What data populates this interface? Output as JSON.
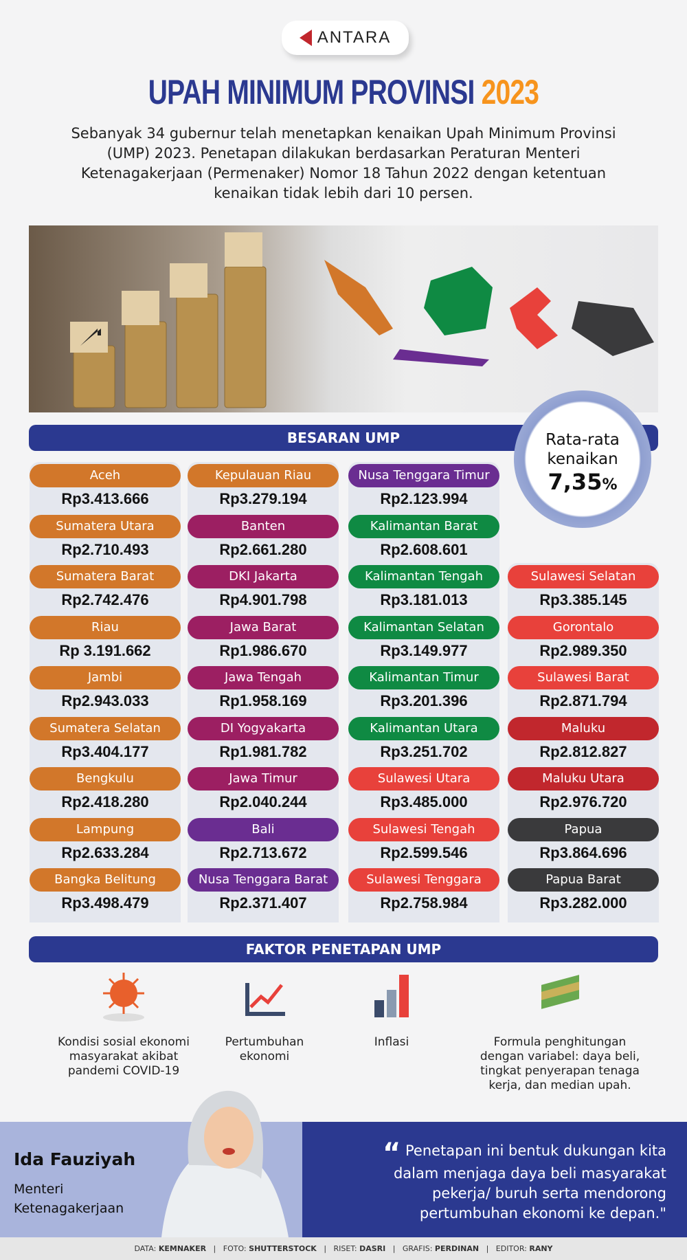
{
  "brand": "ANTARA",
  "title": {
    "main": "UPAH MINIMUM PROVINSI",
    "year": "2023"
  },
  "intro": "Sebanyak 34 gubernur telah menetapkan kenaikan Upah Minimum Provinsi (UMP) 2023. Penetapan dilakukan berdasarkan Peraturan Menteri Ketenagakerjaan (Permenaker) Nomor 18 Tahun 2022 dengan ketentuan kenaikan tidak lebih dari 10 persen.",
  "besaran_title": "BESARAN UMP",
  "average": {
    "label1": "Rata-rata",
    "label2": "kenaikan",
    "value": "7,35",
    "unit": "%"
  },
  "colors": {
    "sumatera": "#d2772a",
    "jawa": "#9c1f62",
    "nusa": "#6a2d91",
    "kalimantan": "#0f8a43",
    "sulawesi": "#e8413b",
    "maluku": "#c1272d",
    "papua": "#3a3a3c",
    "navy": "#2b3990",
    "orange": "#f7941d"
  },
  "columns": [
    [
      {
        "name": "Aceh",
        "value": "Rp3.413.666",
        "region": "sumatera"
      },
      {
        "name": "Sumatera Utara",
        "value": "Rp2.710.493",
        "region": "sumatera"
      },
      {
        "name": "Sumatera Barat",
        "value": "Rp2.742.476",
        "region": "sumatera"
      },
      {
        "name": "Riau",
        "value": "Rp 3.191.662",
        "region": "sumatera"
      },
      {
        "name": "Jambi",
        "value": "Rp2.943.033",
        "region": "sumatera"
      },
      {
        "name": "Sumatera Selatan",
        "value": "Rp3.404.177",
        "region": "sumatera"
      },
      {
        "name": "Bengkulu",
        "value": "Rp2.418.280",
        "region": "sumatera"
      },
      {
        "name": "Lampung",
        "value": "Rp2.633.284",
        "region": "sumatera"
      },
      {
        "name": "Bangka Belitung",
        "value": "Rp3.498.479",
        "region": "sumatera"
      }
    ],
    [
      {
        "name": "Kepulauan Riau",
        "value": "Rp3.279.194",
        "region": "sumatera"
      },
      {
        "name": "Banten",
        "value": "Rp2.661.280",
        "region": "jawa"
      },
      {
        "name": "DKI Jakarta",
        "value": "Rp4.901.798",
        "region": "jawa"
      },
      {
        "name": "Jawa Barat",
        "value": "Rp1.986.670",
        "region": "jawa"
      },
      {
        "name": "Jawa Tengah",
        "value": "Rp1.958.169",
        "region": "jawa"
      },
      {
        "name": "DI Yogyakarta",
        "value": "Rp1.981.782",
        "region": "jawa"
      },
      {
        "name": "Jawa Timur",
        "value": "Rp2.040.244",
        "region": "jawa"
      },
      {
        "name": "Bali",
        "value": "Rp2.713.672",
        "region": "nusa"
      },
      {
        "name": "Nusa Tenggara Barat",
        "value": "Rp2.371.407",
        "region": "nusa"
      }
    ],
    [
      {
        "name": "Nusa Tenggara Timur",
        "value": "Rp2.123.994",
        "region": "nusa"
      },
      {
        "name": "Kalimantan Barat",
        "value": "Rp2.608.601",
        "region": "kalimantan"
      },
      {
        "name": "Kalimantan Tengah",
        "value": "Rp3.181.013",
        "region": "kalimantan"
      },
      {
        "name": "Kalimantan Selatan",
        "value": "Rp3.149.977",
        "region": "kalimantan"
      },
      {
        "name": "Kalimantan Timur",
        "value": "Rp3.201.396",
        "region": "kalimantan"
      },
      {
        "name": "Kalimantan Utara",
        "value": "Rp3.251.702",
        "region": "kalimantan"
      },
      {
        "name": "Sulawesi Utara",
        "value": "Rp3.485.000",
        "region": "sulawesi"
      },
      {
        "name": "Sulawesi Tengah",
        "value": "Rp2.599.546",
        "region": "sulawesi"
      },
      {
        "name": "Sulawesi Tenggara",
        "value": "Rp2.758.984",
        "region": "sulawesi"
      }
    ],
    [
      {
        "name": "Sulawesi Selatan",
        "value": "Rp3.385.145",
        "region": "sulawesi"
      },
      {
        "name": "Gorontalo",
        "value": "Rp2.989.350",
        "region": "sulawesi"
      },
      {
        "name": "Sulawesi Barat",
        "value": "Rp2.871.794",
        "region": "sulawesi"
      },
      {
        "name": "Maluku",
        "value": "Rp2.812.827",
        "region": "maluku"
      },
      {
        "name": "Maluku Utara",
        "value": "Rp2.976.720",
        "region": "maluku"
      },
      {
        "name": "Papua",
        "value": "Rp3.864.696",
        "region": "papua"
      },
      {
        "name": "Papua Barat",
        "value": "Rp3.282.000",
        "region": "papua"
      }
    ]
  ],
  "faktor_title": "FAKTOR PENETAPAN UMP",
  "faktor": [
    {
      "icon": "virus-icon",
      "text": "Kondisi sosial ekonomi masyarakat akibat pandemi COVID-19"
    },
    {
      "icon": "growth-chart-icon",
      "text": "Pertumbuhan ekonomi"
    },
    {
      "icon": "inflation-bars-icon",
      "text": "Inflasi"
    },
    {
      "icon": "money-stack-icon",
      "text": "Formula penghitungan dengan variabel: daya beli, tingkat penyerapan tenaga kerja, dan median upah."
    }
  ],
  "quote": {
    "name": "Ida Fauziyah",
    "role1": "Menteri",
    "role2": "Ketenagakerjaan",
    "text": "Penetapan ini bentuk dukungan kita dalam menjaga daya beli masyarakat pekerja/ buruh serta mendorong pertumbuhan ekonomi ke depan.\""
  },
  "credits": [
    {
      "k": "DATA:",
      "v": "KEMNAKER"
    },
    {
      "k": "FOTO:",
      "v": "SHUTTERSTOCK"
    },
    {
      "k": "RISET:",
      "v": "DASRI"
    },
    {
      "k": "GRAFIS:",
      "v": "PERDINAN"
    },
    {
      "k": "EDITOR:",
      "v": "RANY"
    }
  ]
}
